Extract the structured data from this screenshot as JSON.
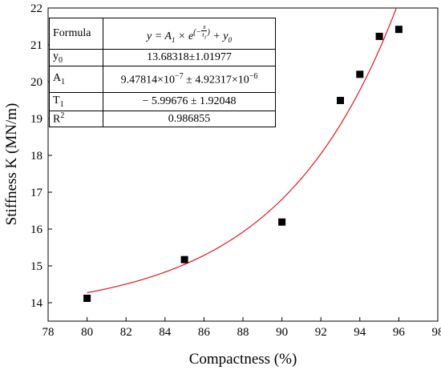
{
  "chart_data": {
    "type": "scatter",
    "xlabel": "Compactness (%)",
    "ylabel": "Stiffness K (MN/m)",
    "xlim": [
      78,
      98
    ],
    "ylim": [
      13.5,
      22
    ],
    "xticks": [
      78,
      80,
      82,
      84,
      86,
      88,
      90,
      92,
      94,
      96,
      98
    ],
    "yticks": [
      14,
      15,
      16,
      17,
      18,
      19,
      20,
      21,
      22
    ],
    "series": [
      {
        "x": [
          80,
          85,
          90,
          93,
          94,
          95,
          96
        ],
        "y": [
          14.12,
          15.17,
          16.19,
          19.49,
          20.2,
          21.23,
          21.42
        ],
        "marker": "square",
        "color": "#000000"
      }
    ],
    "fit": {
      "model": "exponential",
      "y0": 13.68318,
      "A1": 9.47814e-07,
      "t1": -5.99676,
      "x_range": [
        80,
        96
      ],
      "color": "#e8141c"
    },
    "table": {
      "formula_label": "Formula",
      "formula_y": "y",
      "formula_eq": " = ",
      "formula_A": "A",
      "formula_A_sub": "1",
      "formula_times": " × ",
      "formula_e": "e",
      "formula_exp_left": "(−",
      "formula_exp_num": "x",
      "formula_exp_den_t": "t",
      "formula_exp_den_sub": "1",
      "formula_exp_right": ")",
      "formula_plus": " + ",
      "formula_y0": "y",
      "formula_y0_sub": "0",
      "y0_label": "y",
      "y0_sub": "0",
      "y0_value": "13.68318±1.01977",
      "a1_label": "A",
      "a1_sub": "1",
      "a1_value_mant": "9.47814×10",
      "a1_value_exp": "−7",
      "a1_value_pm": " ± 4.92317×10",
      "a1_value_exp2": "−6",
      "t1_label": "T",
      "t1_sub": "1",
      "t1_value": "− 5.99676 ± 1.92048",
      "r2_label": "R",
      "r2_sup": "2",
      "r2_value": "0.986855"
    }
  }
}
